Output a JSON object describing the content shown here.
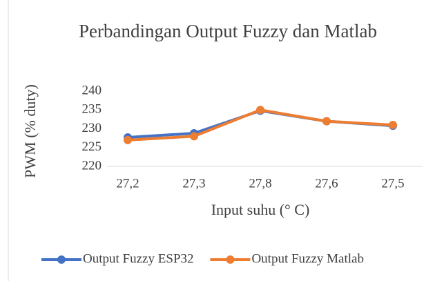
{
  "chart_data": {
    "type": "line",
    "title": "Perbandingan Output Fuzzy dan Matlab",
    "x_label": "Input suhu (° C)",
    "y_label": "PWM (% duty)",
    "categories": [
      "27,2",
      "27,3",
      "27,8",
      "27,6",
      "27,5"
    ],
    "series": [
      {
        "name": "Output Fuzzy ESP32",
        "color": "#4472c4",
        "values": [
          227.7,
          228.8,
          234.8,
          232,
          230.8
        ]
      },
      {
        "name": "Output Fuzzy Matlab",
        "color": "#ed7d31",
        "values": [
          227,
          228,
          235,
          232,
          231
        ]
      }
    ],
    "ylim": [
      220,
      240
    ],
    "yticks": [
      220,
      225,
      230,
      235,
      240
    ],
    "grid": false,
    "legend": "bottom"
  }
}
